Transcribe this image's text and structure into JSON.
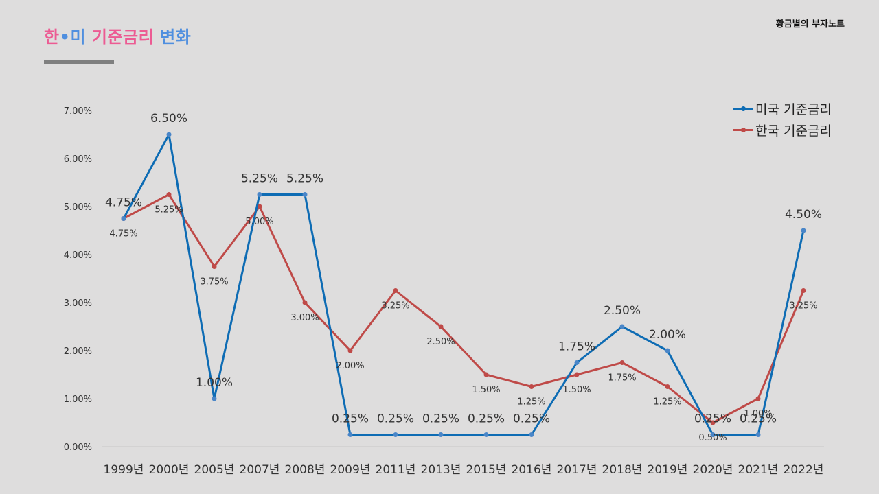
{
  "header": {
    "title_part1": "한",
    "title_sep": "•",
    "title_part2": "미",
    "title_part3": "기준금리",
    "title_part4": "변화",
    "brand": "황금별의 부자노트"
  },
  "colors": {
    "us": "#0e6cb4",
    "kr": "#bf4a48",
    "grid": "#c8c8c8",
    "axis_text": "#333333"
  },
  "chart_data": {
    "type": "line",
    "title": "한•미 기준금리 변화",
    "categories": [
      "1999년",
      "2000년",
      "2005년",
      "2007년",
      "2008년",
      "2009년",
      "2011년",
      "2013년",
      "2015년",
      "2016년",
      "2017년",
      "2018년",
      "2019년",
      "2020년",
      "2021년",
      "2022년"
    ],
    "y_ticks": [
      "0.00%",
      "1.00%",
      "2.00%",
      "3.00%",
      "4.00%",
      "5.00%",
      "6.00%",
      "7.00%"
    ],
    "ylim": [
      0,
      7
    ],
    "legend_position": "top-right",
    "series": [
      {
        "name": "미국 기준금리",
        "key": "us",
        "values": [
          4.75,
          6.5,
          1.0,
          5.25,
          5.25,
          0.25,
          0.25,
          0.25,
          0.25,
          0.25,
          1.75,
          2.5,
          2.0,
          0.25,
          0.25,
          4.5
        ],
        "labels": [
          "4.75%",
          "6.50%",
          "1.00%",
          "5.25%",
          "5.25%",
          "0.25%",
          "0.25%",
          "0.25%",
          "0.25%",
          "0.25%",
          "1.75%",
          "2.50%",
          "2.00%",
          "0.25%",
          "0.25%",
          "4.50%"
        ]
      },
      {
        "name": "한국 기준금리",
        "key": "kr",
        "values": [
          4.75,
          5.25,
          3.75,
          5.0,
          3.0,
          2.0,
          3.25,
          2.5,
          1.5,
          1.25,
          1.5,
          1.75,
          1.25,
          0.5,
          1.0,
          3.25
        ],
        "labels": [
          "4.75%",
          "5.25%",
          "3.75%",
          "5.00%",
          "3.00%",
          "2.00%",
          "3.25%",
          "2.50%",
          "1.50%",
          "1.25%",
          "1.50%",
          "1.75%",
          "1.25%",
          "0.50%",
          "1.00%",
          "3.25%"
        ]
      }
    ]
  }
}
